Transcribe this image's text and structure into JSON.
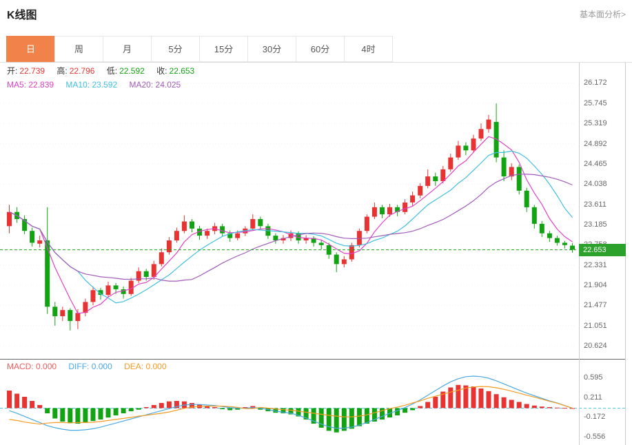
{
  "header": {
    "title": "K线图",
    "link": "基本面分析>"
  },
  "tabs": {
    "items": [
      {
        "label": "日",
        "active": true
      },
      {
        "label": "周",
        "active": false
      },
      {
        "label": "月",
        "active": false
      },
      {
        "label": "5分",
        "active": false
      },
      {
        "label": "15分",
        "active": false
      },
      {
        "label": "30分",
        "active": false
      },
      {
        "label": "60分",
        "active": false
      },
      {
        "label": "4时",
        "active": false
      }
    ]
  },
  "ohlc": {
    "open_label": "开:",
    "open_value": "22.739",
    "high_label": "高:",
    "high_value": "22.796",
    "low_label": "低:",
    "low_value": "22.592",
    "close_label": "收:",
    "close_value": "22.653"
  },
  "ma": {
    "ma5_label": "MA5:",
    "ma5_value": "22.839",
    "ma10_label": "MA10:",
    "ma10_value": "23.592",
    "ma20_label": "MA20:",
    "ma20_value": "24.025"
  },
  "macd_info": {
    "macd_label": "MACD:",
    "macd_value": "0.000",
    "diff_label": "DIFF:",
    "diff_value": "0.000",
    "dea_label": "DEA:",
    "dea_value": "0.000"
  },
  "chart_data": {
    "type": "candlestick",
    "title": "K线图",
    "timeframe": "日",
    "current_price": 22.653,
    "current_price_label": "22.653",
    "y_axis_labels": [
      "26.172",
      "25.745",
      "25.319",
      "24.892",
      "24.465",
      "24.038",
      "23.611",
      "23.185",
      "22.758",
      "22.331",
      "21.904",
      "21.477",
      "21.051",
      "20.624"
    ],
    "candles": [
      [
        23.15,
        23.6,
        23.0,
        23.45
      ],
      [
        23.45,
        23.55,
        23.22,
        23.3
      ],
      [
        23.3,
        23.38,
        22.98,
        23.05
      ],
      [
        23.05,
        23.12,
        22.72,
        22.8
      ],
      [
        22.78,
        22.95,
        22.7,
        22.85
      ],
      [
        22.85,
        23.55,
        21.3,
        21.45
      ],
      [
        21.45,
        21.55,
        21.05,
        21.25
      ],
      [
        21.25,
        21.45,
        21.15,
        21.38
      ],
      [
        21.38,
        21.42,
        20.95,
        21.15
      ],
      [
        21.15,
        21.4,
        20.98,
        21.32
      ],
      [
        21.32,
        21.62,
        21.25,
        21.55
      ],
      [
        21.55,
        21.88,
        21.48,
        21.8
      ],
      [
        21.8,
        21.85,
        21.6,
        21.7
      ],
      [
        21.7,
        21.98,
        21.65,
        21.9
      ],
      [
        21.9,
        21.95,
        21.72,
        21.82
      ],
      [
        21.82,
        21.88,
        21.62,
        21.72
      ],
      [
        21.72,
        22.06,
        21.68,
        22.0
      ],
      [
        22.0,
        22.28,
        21.95,
        22.2
      ],
      [
        22.2,
        22.25,
        22.0,
        22.08
      ],
      [
        22.08,
        22.42,
        22.02,
        22.35
      ],
      [
        22.35,
        22.68,
        22.3,
        22.6
      ],
      [
        22.6,
        22.92,
        22.55,
        22.85
      ],
      [
        22.85,
        23.12,
        22.8,
        23.05
      ],
      [
        23.05,
        23.38,
        23.0,
        23.25
      ],
      [
        23.25,
        23.3,
        23.02,
        23.1
      ],
      [
        23.1,
        23.16,
        22.86,
        22.95
      ],
      [
        22.95,
        23.1,
        22.88,
        23.05
      ],
      [
        23.05,
        23.22,
        22.98,
        23.15
      ],
      [
        23.15,
        23.2,
        22.94,
        23.0
      ],
      [
        23.0,
        23.06,
        22.82,
        22.9
      ],
      [
        22.9,
        23.06,
        22.85,
        23.0
      ],
      [
        23.0,
        23.15,
        22.94,
        23.1
      ],
      [
        23.1,
        23.4,
        23.05,
        23.3
      ],
      [
        23.3,
        23.35,
        23.08,
        23.15
      ],
      [
        23.15,
        23.2,
        22.88,
        22.95
      ],
      [
        22.95,
        23.0,
        22.78,
        22.85
      ],
      [
        22.85,
        22.96,
        22.78,
        22.9
      ],
      [
        22.9,
        23.06,
        22.84,
        23.0
      ],
      [
        23.0,
        23.04,
        22.78,
        22.85
      ],
      [
        22.85,
        22.96,
        22.78,
        22.9
      ],
      [
        22.9,
        22.94,
        22.72,
        22.8
      ],
      [
        22.8,
        22.86,
        22.66,
        22.75
      ],
      [
        22.75,
        22.8,
        22.46,
        22.55
      ],
      [
        22.55,
        22.6,
        22.18,
        22.35
      ],
      [
        22.35,
        22.52,
        22.28,
        22.45
      ],
      [
        22.45,
        22.8,
        22.4,
        22.75
      ],
      [
        22.75,
        23.1,
        22.7,
        23.05
      ],
      [
        23.05,
        23.4,
        23.0,
        23.35
      ],
      [
        23.35,
        23.65,
        23.3,
        23.55
      ],
      [
        23.55,
        23.6,
        23.32,
        23.4
      ],
      [
        23.4,
        23.62,
        23.35,
        23.55
      ],
      [
        23.55,
        23.6,
        23.36,
        23.45
      ],
      [
        23.45,
        23.72,
        23.4,
        23.65
      ],
      [
        23.65,
        23.88,
        23.58,
        23.8
      ],
      [
        23.8,
        24.06,
        23.74,
        24.0
      ],
      [
        24.0,
        24.35,
        23.95,
        24.2
      ],
      [
        24.2,
        24.28,
        24.0,
        24.1
      ],
      [
        24.1,
        24.42,
        24.05,
        24.35
      ],
      [
        24.35,
        24.68,
        24.3,
        24.6
      ],
      [
        24.6,
        24.95,
        24.55,
        24.85
      ],
      [
        24.85,
        24.92,
        24.65,
        24.75
      ],
      [
        24.75,
        25.08,
        24.7,
        25.0
      ],
      [
        25.0,
        25.32,
        24.95,
        25.2
      ],
      [
        25.2,
        25.5,
        25.12,
        25.4
      ],
      [
        25.35,
        25.74,
        24.5,
        24.6
      ],
      [
        24.6,
        24.75,
        24.1,
        24.2
      ],
      [
        24.2,
        24.48,
        24.12,
        24.4
      ],
      [
        24.4,
        24.45,
        23.82,
        23.9
      ],
      [
        23.9,
        23.96,
        23.45,
        23.55
      ],
      [
        23.55,
        23.6,
        23.1,
        23.2
      ],
      [
        23.2,
        23.26,
        22.92,
        23.0
      ],
      [
        23.0,
        23.05,
        22.82,
        22.9
      ],
      [
        22.9,
        22.95,
        22.74,
        22.8
      ],
      [
        22.8,
        22.84,
        22.68,
        22.75
      ],
      [
        22.739,
        22.796,
        22.592,
        22.653
      ]
    ],
    "ma_periods": [
      5,
      10,
      20
    ],
    "macd": {
      "y_axis_labels": [
        "0.595",
        "0.211",
        "-0.172",
        "-0.556"
      ],
      "hist": [
        0.34,
        0.28,
        0.22,
        0.14,
        0.06,
        -0.1,
        -0.2,
        -0.26,
        -0.29,
        -0.3,
        -0.28,
        -0.25,
        -0.22,
        -0.18,
        -0.14,
        -0.1,
        -0.06,
        -0.03,
        0.02,
        0.06,
        0.1,
        0.13,
        0.14,
        0.13,
        0.1,
        0.07,
        0.04,
        0.02,
        -0.02,
        -0.04,
        -0.03,
        0.02,
        0.04,
        -0.03,
        -0.06,
        -0.09,
        -0.1,
        -0.12,
        -0.16,
        -0.22,
        -0.3,
        -0.38,
        -0.44,
        -0.47,
        -0.44,
        -0.4,
        -0.35,
        -0.3,
        -0.26,
        -0.22,
        -0.18,
        -0.14,
        -0.09,
        -0.04,
        0.04,
        0.12,
        0.22,
        0.32,
        0.4,
        0.45,
        0.44,
        0.42,
        0.38,
        0.33,
        0.27,
        0.21,
        0.16,
        0.12,
        0.08,
        0.05,
        0.03,
        0.02,
        0.01,
        0.005,
        0.0
      ],
      "diff": [
        -0.05,
        -0.1,
        -0.16,
        -0.22,
        -0.28,
        -0.34,
        -0.38,
        -0.41,
        -0.43,
        -0.43,
        -0.42,
        -0.4,
        -0.37,
        -0.33,
        -0.29,
        -0.25,
        -0.21,
        -0.17,
        -0.13,
        -0.09,
        -0.05,
        -0.01,
        0.03,
        0.06,
        0.07,
        0.07,
        0.06,
        0.05,
        0.03,
        0.01,
        0.0,
        0.0,
        0.01,
        0.0,
        -0.03,
        -0.06,
        -0.08,
        -0.1,
        -0.14,
        -0.19,
        -0.25,
        -0.31,
        -0.36,
        -0.39,
        -0.39,
        -0.37,
        -0.33,
        -0.28,
        -0.22,
        -0.16,
        -0.1,
        -0.05,
        0.01,
        0.08,
        0.16,
        0.25,
        0.34,
        0.43,
        0.51,
        0.57,
        0.61,
        0.62,
        0.61,
        0.58,
        0.53,
        0.47,
        0.41,
        0.35,
        0.29,
        0.24,
        0.19,
        0.14,
        0.1,
        0.05,
        0.0
      ],
      "dea": [
        -0.22,
        -0.24,
        -0.27,
        -0.29,
        -0.31,
        -0.29,
        -0.28,
        -0.28,
        -0.285,
        -0.28,
        -0.28,
        -0.275,
        -0.26,
        -0.24,
        -0.22,
        -0.2,
        -0.18,
        -0.155,
        -0.14,
        -0.12,
        -0.1,
        -0.075,
        -0.04,
        -0.005,
        0.02,
        0.035,
        0.04,
        0.04,
        0.04,
        0.03,
        0.015,
        -0.01,
        -0.01,
        0.015,
        0.0,
        -0.015,
        -0.03,
        -0.04,
        -0.06,
        -0.08,
        -0.1,
        -0.12,
        -0.14,
        -0.155,
        -0.17,
        -0.17,
        -0.155,
        -0.13,
        -0.09,
        -0.05,
        -0.01,
        0.02,
        0.055,
        0.1,
        0.14,
        0.19,
        0.23,
        0.27,
        0.31,
        0.345,
        0.39,
        0.41,
        0.42,
        0.415,
        0.395,
        0.365,
        0.33,
        0.29,
        0.25,
        0.215,
        0.175,
        0.13,
        0.095,
        0.048,
        0.0
      ]
    },
    "colors": {
      "up": "#e83333",
      "down": "#12a312",
      "ma5": "#e040c8",
      "ma10": "#3fbfdf",
      "ma20": "#a05ab8",
      "diff": "#4aa8e0",
      "dea": "#f59a23",
      "macd_label": "#f25b5b",
      "zero_line": "#55c8e8",
      "price_tag_bg": "#2ca22c",
      "active_tab": "#f0824a"
    }
  }
}
